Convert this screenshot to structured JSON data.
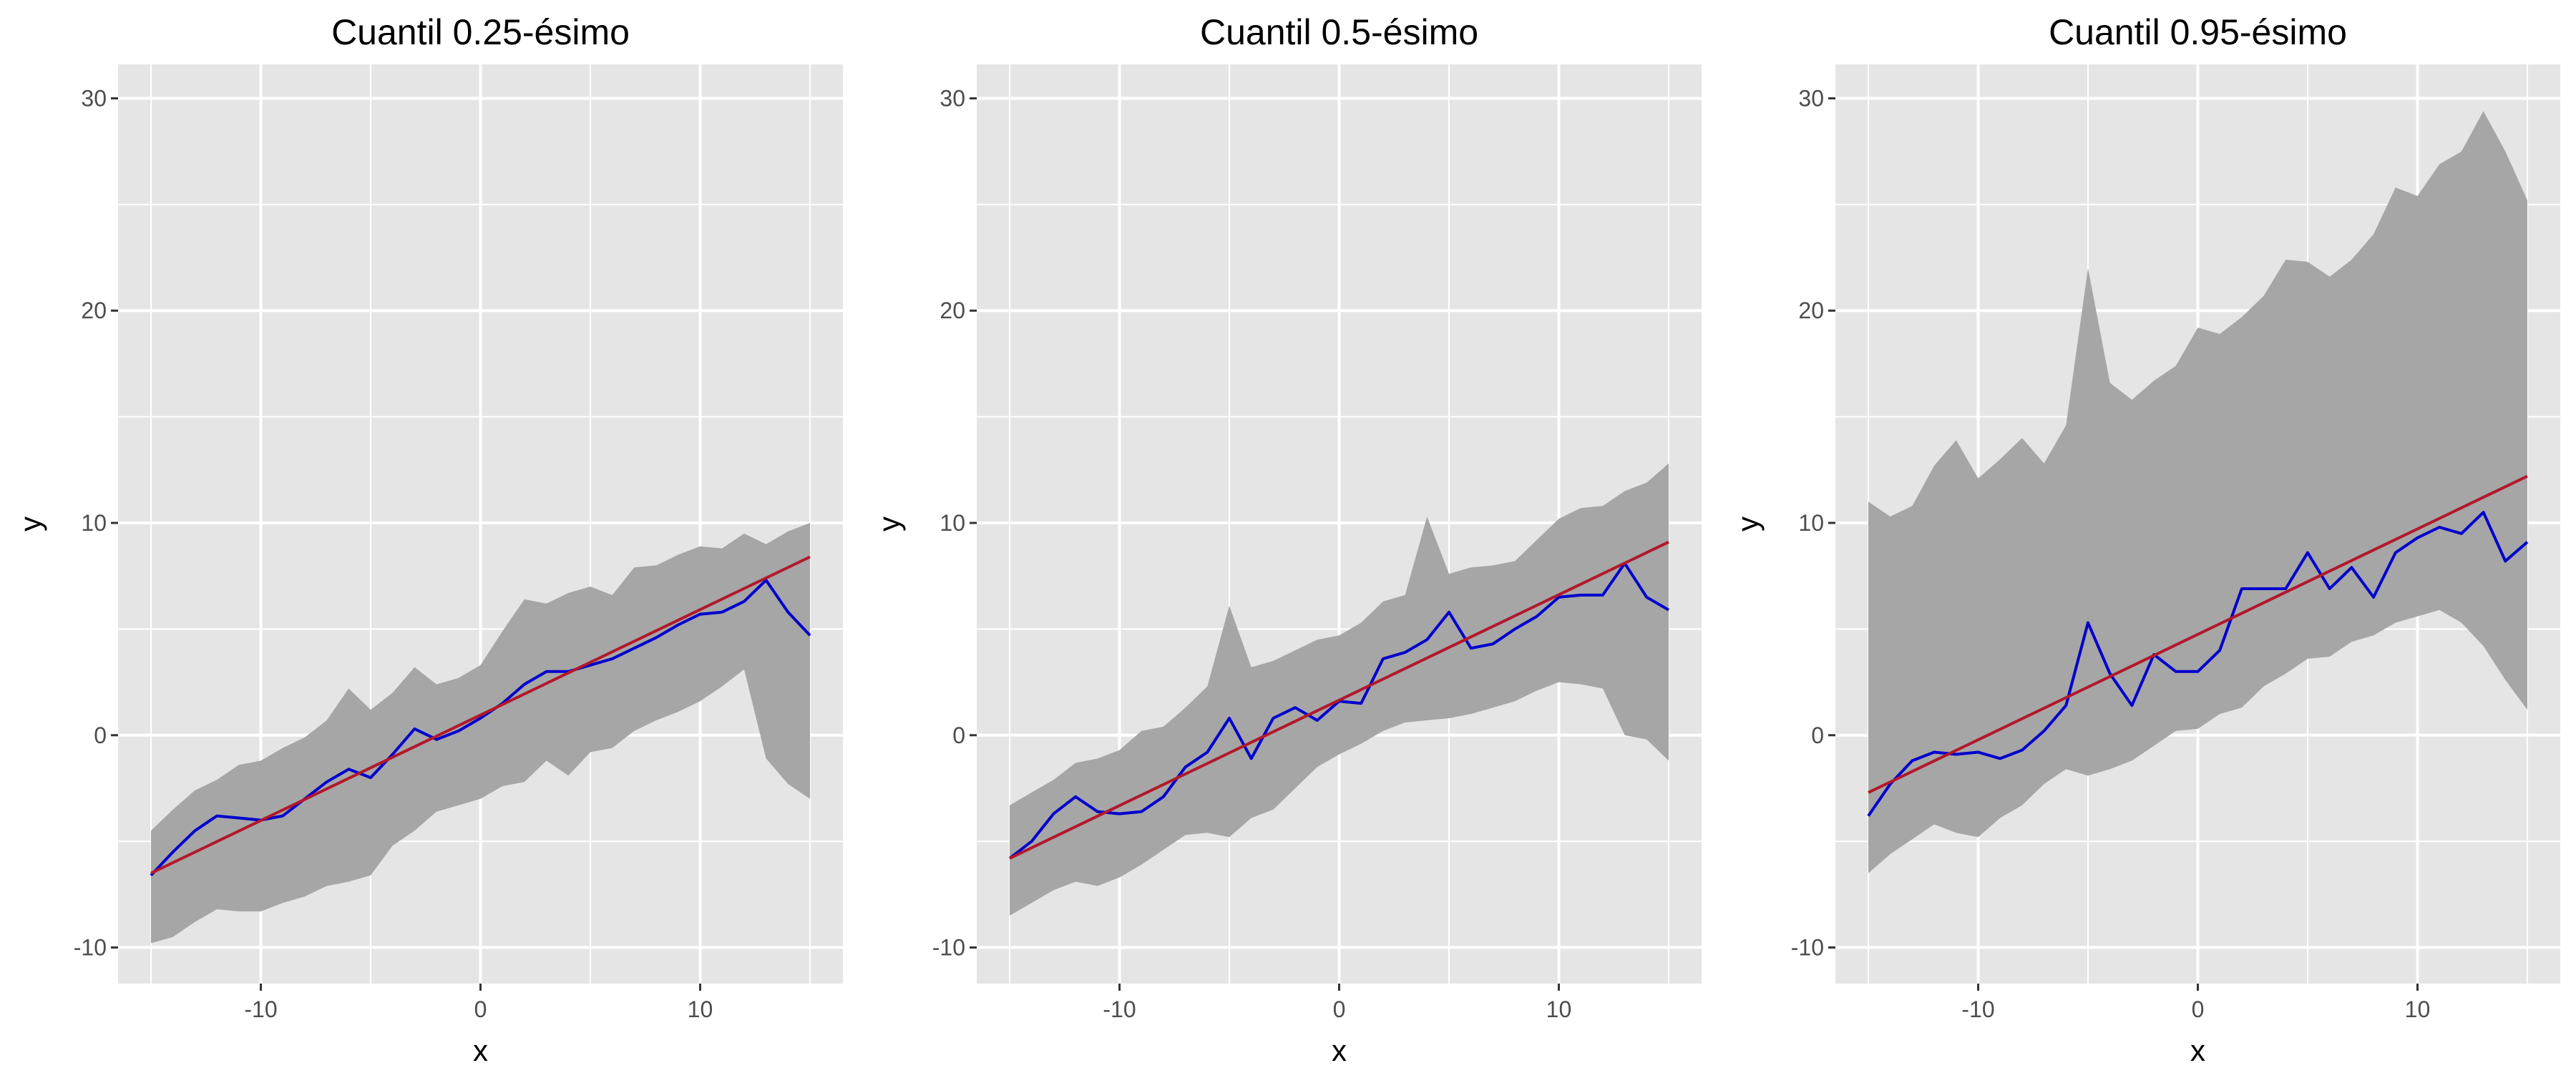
{
  "chart_data": [
    {
      "type": "line",
      "title": "Cuantil 0.25-ésimo",
      "xlabel": "x",
      "ylabel": "y",
      "xlim": [
        -16.5,
        16.5
      ],
      "ylim": [
        -11.7,
        31.6
      ],
      "x_ticks": [
        -10,
        0,
        10
      ],
      "y_ticks": [
        -10,
        0,
        10,
        20,
        30
      ],
      "grid": true,
      "legend": "none",
      "colors": {
        "band": "#a6a6a6",
        "estimate": "#0000cd",
        "reference": "#b2182b",
        "panel": "#e5e5e5",
        "grid": "#ffffff"
      },
      "series": [
        {
          "type": "ribbon",
          "x": [
            -15,
            -14,
            -13,
            -12,
            -11,
            -10,
            -9,
            -8,
            -7,
            -6,
            -5,
            -4,
            -3,
            -2,
            -1,
            0,
            1,
            2,
            3,
            4,
            5,
            6,
            7,
            8,
            9,
            10,
            11,
            12,
            13,
            14,
            15
          ],
          "lower": [
            -9.8,
            -9.5,
            -8.8,
            -8.2,
            -8.3,
            -8.3,
            -7.9,
            -7.6,
            -7.1,
            -6.9,
            -6.6,
            -5.2,
            -4.5,
            -3.6,
            -3.3,
            -3.0,
            -2.4,
            -2.2,
            -1.2,
            -1.9,
            -0.8,
            -0.6,
            0.2,
            0.7,
            1.1,
            1.6,
            2.3,
            3.1,
            -1.1,
            -2.3,
            -3.0
          ],
          "upper": [
            -4.5,
            -3.5,
            -2.6,
            -2.1,
            -1.4,
            -1.2,
            -0.6,
            -0.1,
            0.7,
            2.2,
            1.2,
            2.0,
            3.2,
            2.4,
            2.7,
            3.3,
            4.9,
            6.4,
            6.2,
            6.7,
            7.0,
            6.6,
            7.9,
            8.0,
            8.5,
            8.9,
            8.8,
            9.5,
            9.0,
            9.6,
            10.0
          ]
        },
        {
          "type": "line",
          "name": "",
          "x": [
            -15,
            -14,
            -13,
            -12,
            -11,
            -10,
            -9,
            -8,
            -7,
            -6,
            -5,
            -4,
            -3,
            -2,
            -1,
            0,
            1,
            2,
            3,
            4,
            5,
            6,
            7,
            8,
            9,
            10,
            11,
            12,
            13,
            14,
            15
          ],
          "y": [
            -6.6,
            -5.5,
            -4.5,
            -3.8,
            -3.9,
            -4.0,
            -3.8,
            -3.0,
            -2.2,
            -1.6,
            -2.0,
            -0.9,
            0.3,
            -0.2,
            0.2,
            0.8,
            1.5,
            2.4,
            3.0,
            3.0,
            3.3,
            3.6,
            4.1,
            4.6,
            5.2,
            5.7,
            5.8,
            6.3,
            7.3,
            5.8,
            4.7
          ]
        },
        {
          "type": "line",
          "name": "",
          "x": [
            -15,
            15
          ],
          "y": [
            -6.5,
            8.4
          ]
        }
      ]
    },
    {
      "type": "line",
      "title": "Cuantil 0.5-ésimo",
      "xlabel": "x",
      "ylabel": "y",
      "xlim": [
        -16.5,
        16.5
      ],
      "ylim": [
        -11.7,
        31.6
      ],
      "x_ticks": [
        -10,
        0,
        10
      ],
      "y_ticks": [
        -10,
        0,
        10,
        20,
        30
      ],
      "grid": true,
      "legend": "none",
      "colors": {
        "band": "#a6a6a6",
        "estimate": "#0000cd",
        "reference": "#b2182b",
        "panel": "#e5e5e5",
        "grid": "#ffffff"
      },
      "series": [
        {
          "type": "ribbon",
          "x": [
            -15,
            -14,
            -13,
            -12,
            -11,
            -10,
            -9,
            -8,
            -7,
            -6,
            -5,
            -4,
            -3,
            -2,
            -1,
            0,
            1,
            2,
            3,
            4,
            5,
            6,
            7,
            8,
            9,
            10,
            11,
            12,
            13,
            14,
            15
          ],
          "lower": [
            -8.5,
            -7.9,
            -7.3,
            -6.9,
            -7.1,
            -6.7,
            -6.1,
            -5.4,
            -4.7,
            -4.6,
            -4.8,
            -3.9,
            -3.5,
            -2.5,
            -1.5,
            -0.9,
            -0.4,
            0.2,
            0.6,
            0.7,
            0.8,
            1.0,
            1.3,
            1.6,
            2.1,
            2.5,
            2.4,
            2.2,
            0.0,
            -0.2,
            -1.2
          ],
          "upper": [
            -3.3,
            -2.7,
            -2.1,
            -1.3,
            -1.1,
            -0.7,
            0.2,
            0.4,
            1.3,
            2.3,
            6.1,
            3.2,
            3.5,
            4.0,
            4.5,
            4.7,
            5.3,
            6.3,
            6.6,
            10.3,
            7.6,
            7.9,
            8.0,
            8.2,
            9.2,
            10.2,
            10.7,
            10.8,
            11.5,
            11.9,
            12.8
          ]
        },
        {
          "type": "line",
          "name": "",
          "x": [
            -15,
            -14,
            -13,
            -12,
            -11,
            -10,
            -9,
            -8,
            -7,
            -6,
            -5,
            -4,
            -3,
            -2,
            -1,
            0,
            1,
            2,
            3,
            4,
            5,
            6,
            7,
            8,
            9,
            10,
            11,
            12,
            13,
            14,
            15
          ],
          "y": [
            -5.8,
            -5.0,
            -3.7,
            -2.9,
            -3.6,
            -3.7,
            -3.6,
            -2.9,
            -1.5,
            -0.8,
            0.8,
            -1.1,
            0.8,
            1.3,
            0.7,
            1.6,
            1.5,
            3.6,
            3.9,
            4.5,
            5.8,
            4.1,
            4.3,
            5.0,
            5.6,
            6.5,
            6.6,
            6.6,
            8.1,
            6.5,
            5.9
          ]
        },
        {
          "type": "line",
          "name": "",
          "x": [
            -15,
            15
          ],
          "y": [
            -5.8,
            9.1
          ]
        }
      ]
    },
    {
      "type": "line",
      "title": "Cuantil 0.95-ésimo",
      "xlabel": "x",
      "ylabel": "y",
      "xlim": [
        -16.5,
        16.5
      ],
      "ylim": [
        -11.7,
        31.6
      ],
      "x_ticks": [
        -10,
        0,
        10
      ],
      "y_ticks": [
        -10,
        0,
        10,
        20,
        30
      ],
      "grid": true,
      "legend": "none",
      "colors": {
        "band": "#a6a6a6",
        "estimate": "#0000cd",
        "reference": "#b2182b",
        "panel": "#e5e5e5",
        "grid": "#ffffff"
      },
      "series": [
        {
          "type": "ribbon",
          "x": [
            -15,
            -14,
            -13,
            -12,
            -11,
            -10,
            -9,
            -8,
            -7,
            -6,
            -5,
            -4,
            -3,
            -2,
            -1,
            0,
            1,
            2,
            3,
            4,
            5,
            6,
            7,
            8,
            9,
            10,
            11,
            12,
            13,
            14,
            15
          ],
          "lower": [
            -6.5,
            -5.6,
            -4.9,
            -4.2,
            -4.6,
            -4.8,
            -3.9,
            -3.3,
            -2.3,
            -1.6,
            -1.9,
            -1.6,
            -1.2,
            -0.5,
            0.2,
            0.3,
            1.0,
            1.3,
            2.3,
            2.9,
            3.6,
            3.7,
            4.4,
            4.7,
            5.3,
            5.6,
            5.9,
            5.3,
            4.2,
            2.6,
            1.2
          ],
          "upper": [
            11.0,
            10.3,
            10.8,
            12.7,
            13.9,
            12.1,
            13.0,
            14.0,
            12.8,
            14.6,
            22.0,
            16.6,
            15.8,
            16.7,
            17.4,
            19.2,
            18.9,
            19.7,
            20.7,
            22.4,
            22.3,
            21.6,
            22.4,
            23.6,
            25.8,
            25.4,
            26.9,
            27.5,
            29.4,
            27.5,
            25.2
          ]
        },
        {
          "type": "line",
          "name": "",
          "x": [
            -15,
            -14,
            -13,
            -12,
            -11,
            -10,
            -9,
            -8,
            -7,
            -6,
            -5,
            -4,
            -3,
            -2,
            -1,
            0,
            1,
            2,
            3,
            4,
            5,
            6,
            7,
            8,
            9,
            10,
            11,
            12,
            13,
            14,
            15
          ],
          "y": [
            -3.8,
            -2.3,
            -1.2,
            -0.8,
            -0.9,
            -0.8,
            -1.1,
            -0.7,
            0.2,
            1.4,
            5.3,
            2.9,
            1.4,
            3.8,
            3.0,
            3.0,
            4.0,
            6.9,
            6.9,
            6.9,
            8.6,
            6.9,
            7.9,
            6.5,
            8.6,
            9.3,
            9.8,
            9.5,
            10.5,
            8.2,
            9.1
          ]
        },
        {
          "type": "line",
          "name": "",
          "x": [
            -15,
            15
          ],
          "y": [
            -2.7,
            12.2
          ]
        }
      ]
    }
  ]
}
